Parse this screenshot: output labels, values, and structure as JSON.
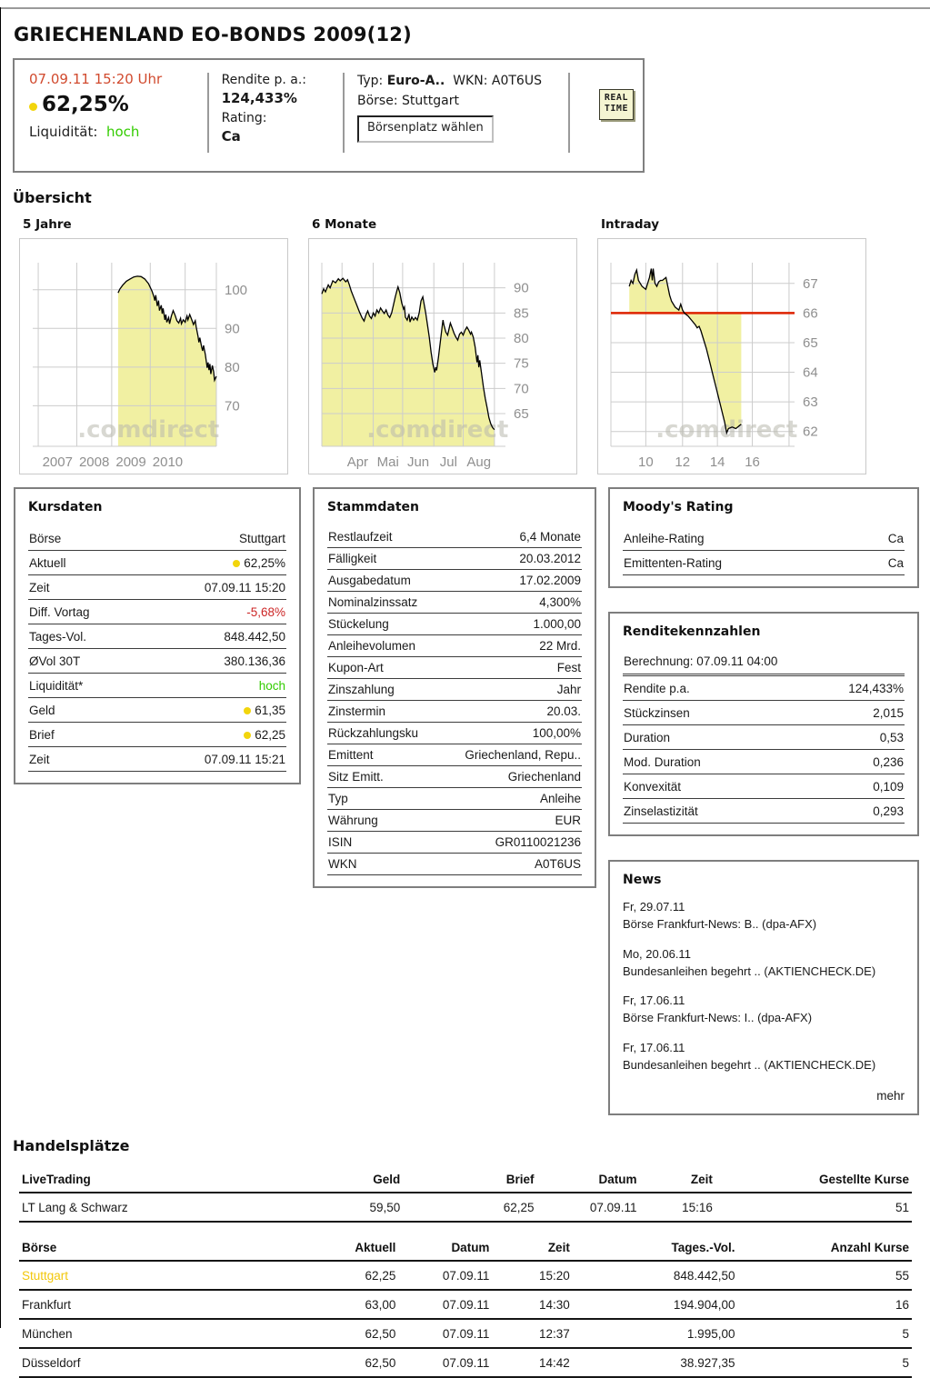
{
  "page": {
    "title": "GRIECHENLAND EO-BONDS 2009(12)"
  },
  "header": {
    "timestamp": "07.09.11  15:20 Uhr",
    "price": "62,25%",
    "liquidity_label": "Liquidität:",
    "liquidity_value": "hoch",
    "yield_label": "Rendite p. a.:",
    "yield_value": "124,433%",
    "rating_label": "Rating:",
    "rating_value": "Ca",
    "type_label": "Typ:",
    "type_value": "Euro-A..",
    "wkn_label": "WKN:",
    "wkn_value": "A0T6US",
    "exchange_label": "Börse:",
    "exchange_value": "Stuttgart",
    "select_button": "Börsenplatz wählen",
    "badge": [
      "REAL",
      "TIME"
    ]
  },
  "overview_heading": "Übersicht",
  "watermark": ".comdirect",
  "colors": {
    "accent_red": "#d14a2e",
    "negative_red": "#cc2626",
    "positive_green": "#33cc00",
    "quote_dot_yellow": "#f2d50c",
    "chart_fill": "#f1f0a2",
    "chart_refline_red": "#dd2200",
    "highlight_yellow": "#f2c70b"
  },
  "chart_data": [
    {
      "type": "area",
      "title": "5 Jahre",
      "ylabel": "",
      "xlabel": "",
      "ylim": [
        59.5,
        107
      ],
      "yticks": [
        70,
        80,
        90,
        100
      ],
      "grid_x": [
        0.03,
        0.24,
        0.43,
        0.64,
        0.83,
        1.0
      ],
      "xlabels": [
        {
          "t": "2007",
          "x": 0.135
        },
        {
          "t": "2008",
          "x": 0.335
        },
        {
          "t": "2009",
          "x": 0.535
        },
        {
          "t": "2010",
          "x": 0.735
        }
      ],
      "points": [
        [
          0.465,
          99.2
        ],
        [
          0.475,
          100.2
        ],
        [
          0.49,
          101.2
        ],
        [
          0.51,
          102.2
        ],
        [
          0.53,
          102.8
        ],
        [
          0.55,
          103.3
        ],
        [
          0.57,
          103.5
        ],
        [
          0.59,
          103.4
        ],
        [
          0.61,
          102.8
        ],
        [
          0.63,
          101.6
        ],
        [
          0.64,
          100.6
        ],
        [
          0.65,
          99.6
        ],
        [
          0.66,
          98.2
        ],
        [
          0.665,
          97.2
        ],
        [
          0.67,
          98.6
        ],
        [
          0.678,
          95.8
        ],
        [
          0.685,
          97.2
        ],
        [
          0.69,
          94.6
        ],
        [
          0.7,
          96.0
        ],
        [
          0.705,
          93.8
        ],
        [
          0.71,
          95.2
        ],
        [
          0.72,
          92.2
        ],
        [
          0.725,
          93.6
        ],
        [
          0.73,
          91.6
        ],
        [
          0.74,
          92.8
        ],
        [
          0.745,
          91.2
        ],
        [
          0.755,
          93.2
        ],
        [
          0.765,
          94.6
        ],
        [
          0.775,
          93.4
        ],
        [
          0.785,
          92.0
        ],
        [
          0.795,
          91.4
        ],
        [
          0.805,
          92.6
        ],
        [
          0.81,
          91.2
        ],
        [
          0.82,
          92.2
        ],
        [
          0.83,
          91.6
        ],
        [
          0.84,
          93.2
        ],
        [
          0.845,
          92.2
        ],
        [
          0.855,
          93.6
        ],
        [
          0.865,
          92.4
        ],
        [
          0.875,
          91.0
        ],
        [
          0.885,
          92.0
        ],
        [
          0.89,
          90.4
        ],
        [
          0.9,
          88.0
        ],
        [
          0.905,
          86.4
        ],
        [
          0.91,
          87.6
        ],
        [
          0.92,
          85.2
        ],
        [
          0.925,
          84.2
        ],
        [
          0.93,
          85.6
        ],
        [
          0.94,
          83.2
        ],
        [
          0.95,
          79.8
        ],
        [
          0.955,
          81.2
        ],
        [
          0.96,
          79.2
        ],
        [
          0.965,
          80.8
        ],
        [
          0.97,
          78.2
        ],
        [
          0.978,
          80.4
        ],
        [
          0.985,
          78.8
        ],
        [
          0.99,
          76.6
        ],
        [
          1.0,
          77.6
        ]
      ]
    },
    {
      "type": "area",
      "title": "6 Monate",
      "ylabel": "",
      "xlabel": "",
      "ylim": [
        58.5,
        95
      ],
      "yticks": [
        65,
        70,
        75,
        80,
        85,
        90
      ],
      "grid_x": [
        0,
        0.11,
        0.28,
        0.44,
        0.61,
        0.77,
        0.94
      ],
      "xlabels": [
        {
          "t": "Apr",
          "x": 0.195
        },
        {
          "t": "Mai",
          "x": 0.36
        },
        {
          "t": "Jun",
          "x": 0.525
        },
        {
          "t": "Jul",
          "x": 0.69
        },
        {
          "t": "Aug",
          "x": 0.855
        }
      ],
      "points": [
        [
          0,
          88.8
        ],
        [
          0.01,
          89.8
        ],
        [
          0.02,
          89.2
        ],
        [
          0.035,
          90.6
        ],
        [
          0.045,
          90.0
        ],
        [
          0.06,
          91.4
        ],
        [
          0.075,
          91.0
        ],
        [
          0.09,
          91.8
        ],
        [
          0.1,
          91.4
        ],
        [
          0.115,
          91.9
        ],
        [
          0.13,
          91.2
        ],
        [
          0.14,
          91.6
        ],
        [
          0.15,
          90.6
        ],
        [
          0.16,
          89.4
        ],
        [
          0.175,
          88.0
        ],
        [
          0.19,
          86.6
        ],
        [
          0.205,
          85.2
        ],
        [
          0.22,
          84.0
        ],
        [
          0.23,
          83.4
        ],
        [
          0.24,
          84.6
        ],
        [
          0.25,
          85.4
        ],
        [
          0.26,
          84.4
        ],
        [
          0.27,
          83.9
        ],
        [
          0.28,
          85.0
        ],
        [
          0.29,
          84.4
        ],
        [
          0.3,
          85.6
        ],
        [
          0.31,
          85.0
        ],
        [
          0.32,
          86.0
        ],
        [
          0.33,
          85.4
        ],
        [
          0.34,
          84.9
        ],
        [
          0.35,
          85.6
        ],
        [
          0.36,
          84.6
        ],
        [
          0.37,
          84.1
        ],
        [
          0.38,
          85.0
        ],
        [
          0.39,
          86.6
        ],
        [
          0.4,
          88.2
        ],
        [
          0.41,
          89.6
        ],
        [
          0.415,
          90.2
        ],
        [
          0.425,
          89.0
        ],
        [
          0.435,
          87.0
        ],
        [
          0.445,
          85.8
        ],
        [
          0.45,
          86.2
        ],
        [
          0.455,
          84.2
        ],
        [
          0.465,
          83.6
        ],
        [
          0.475,
          84.8
        ],
        [
          0.48,
          83.2
        ],
        [
          0.49,
          84.2
        ],
        [
          0.5,
          83.6
        ],
        [
          0.51,
          84.1
        ],
        [
          0.52,
          83.6
        ],
        [
          0.53,
          85.0
        ],
        [
          0.54,
          87.4
        ],
        [
          0.55,
          88.2
        ],
        [
          0.555,
          87.2
        ],
        [
          0.565,
          85.2
        ],
        [
          0.575,
          82.8
        ],
        [
          0.585,
          80.2
        ],
        [
          0.595,
          77.2
        ],
        [
          0.605,
          74.8
        ],
        [
          0.615,
          73.2
        ],
        [
          0.62,
          74.2
        ],
        [
          0.625,
          73.6
        ],
        [
          0.635,
          76.2
        ],
        [
          0.645,
          79.2
        ],
        [
          0.655,
          82.2
        ],
        [
          0.66,
          83.6
        ],
        [
          0.665,
          82.6
        ],
        [
          0.675,
          81.2
        ],
        [
          0.685,
          80.6
        ],
        [
          0.695,
          82.2
        ],
        [
          0.7,
          83.0
        ],
        [
          0.71,
          82.0
        ],
        [
          0.72,
          81.0
        ],
        [
          0.73,
          80.2
        ],
        [
          0.74,
          79.6
        ],
        [
          0.75,
          80.8
        ],
        [
          0.76,
          81.2
        ],
        [
          0.77,
          80.6
        ],
        [
          0.78,
          81.6
        ],
        [
          0.79,
          82.2
        ],
        [
          0.8,
          81.6
        ],
        [
          0.81,
          80.8
        ],
        [
          0.815,
          81.2
        ],
        [
          0.825,
          80.2
        ],
        [
          0.835,
          78.2
        ],
        [
          0.845,
          75.2
        ],
        [
          0.85,
          76.6
        ],
        [
          0.855,
          74.2
        ],
        [
          0.86,
          75.6
        ],
        [
          0.87,
          73.0
        ],
        [
          0.88,
          70.2
        ],
        [
          0.89,
          68.0
        ],
        [
          0.9,
          66.2
        ],
        [
          0.91,
          64.2
        ],
        [
          0.92,
          63.0
        ],
        [
          0.93,
          62.2
        ],
        [
          0.94,
          61.8
        ]
      ]
    },
    {
      "type": "area",
      "title": "Intraday",
      "ylabel": "",
      "xlabel": "",
      "ylim": [
        61.5,
        67.7
      ],
      "yticks": [
        62,
        63,
        64,
        65,
        66,
        67
      ],
      "refline": 66,
      "grid_x": [
        0,
        0.19,
        0.39,
        0.58,
        0.77,
        0.97
      ],
      "xlabels": [
        {
          "t": "10",
          "x": 0.19
        },
        {
          "t": "12",
          "x": 0.39
        },
        {
          "t": "14",
          "x": 0.58
        },
        {
          "t": "16",
          "x": 0.77
        }
      ],
      "points": [
        [
          0.1,
          66.9
        ],
        [
          0.11,
          67.1
        ],
        [
          0.12,
          67.0
        ],
        [
          0.13,
          67.3
        ],
        [
          0.14,
          67.45
        ],
        [
          0.15,
          67.1
        ],
        [
          0.16,
          67.0
        ],
        [
          0.17,
          66.9
        ],
        [
          0.18,
          66.85
        ],
        [
          0.19,
          66.8
        ],
        [
          0.2,
          67.0
        ],
        [
          0.21,
          67.2
        ],
        [
          0.22,
          67.5
        ],
        [
          0.225,
          67.1
        ],
        [
          0.23,
          67.5
        ],
        [
          0.24,
          67.0
        ],
        [
          0.25,
          66.9
        ],
        [
          0.26,
          67.05
        ],
        [
          0.27,
          67.1
        ],
        [
          0.28,
          67.1
        ],
        [
          0.29,
          67.15
        ],
        [
          0.3,
          67.2
        ],
        [
          0.31,
          66.9
        ],
        [
          0.32,
          66.6
        ],
        [
          0.33,
          66.4
        ],
        [
          0.34,
          66.3
        ],
        [
          0.35,
          66.2
        ],
        [
          0.36,
          66.15
        ],
        [
          0.37,
          66.1
        ],
        [
          0.38,
          66.3
        ],
        [
          0.39,
          66.1
        ],
        [
          0.4,
          66.0
        ],
        [
          0.42,
          65.9
        ],
        [
          0.44,
          65.75
        ],
        [
          0.46,
          65.6
        ],
        [
          0.47,
          65.5
        ],
        [
          0.48,
          65.55
        ],
        [
          0.49,
          65.4
        ],
        [
          0.5,
          65.2
        ],
        [
          0.52,
          64.8
        ],
        [
          0.54,
          64.3
        ],
        [
          0.56,
          63.8
        ],
        [
          0.58,
          63.3
        ],
        [
          0.6,
          62.8
        ],
        [
          0.62,
          62.3
        ],
        [
          0.63,
          61.95
        ],
        [
          0.64,
          62.1
        ],
        [
          0.66,
          62.15
        ],
        [
          0.68,
          62.1
        ],
        [
          0.7,
          62.2
        ],
        [
          0.71,
          62.25
        ]
      ]
    }
  ],
  "kursdaten": {
    "heading": "Kursdaten",
    "rows": [
      {
        "label": "Börse",
        "value": "Stuttgart"
      },
      {
        "label": "Aktuell",
        "value": "62,25%",
        "dot": true
      },
      {
        "label": "Zeit",
        "value": "07.09.11 15:20"
      },
      {
        "label": "Diff. Vortag",
        "value": "-5,68%",
        "cls": "red"
      },
      {
        "label": "Tages-Vol.",
        "value": "848.442,50"
      },
      {
        "label": "ØVol 30T",
        "value": "380.136,36"
      },
      {
        "label": "Liquidität*",
        "value": "hoch",
        "cls": "green"
      },
      {
        "label": "Geld",
        "value": "61,35",
        "dot": true
      },
      {
        "label": "Brief",
        "value": "62,25",
        "dot": true
      },
      {
        "label": "Zeit",
        "value": "07.09.11 15:21"
      }
    ]
  },
  "stammdaten": {
    "heading": "Stammdaten",
    "rows": [
      {
        "label": "Restlaufzeit",
        "value": "6,4 Monate"
      },
      {
        "label": "Fälligkeit",
        "value": "20.03.2012"
      },
      {
        "label": "Ausgabedatum",
        "value": "17.02.2009"
      },
      {
        "label": "Nominalzinssatz",
        "value": "4,300%"
      },
      {
        "label": "Stückelung",
        "value": "1.000,00"
      },
      {
        "label": "Anleihevolumen",
        "value": "22 Mrd."
      },
      {
        "label": "Kupon-Art",
        "value": "Fest"
      },
      {
        "label": "Zinszahlung",
        "value": "Jahr"
      },
      {
        "label": "Zinstermin",
        "value": "20.03."
      },
      {
        "label": "Rückzahlungsku",
        "value": "100,00%"
      },
      {
        "label": "Emittent",
        "value": "Griechenland, Repu.."
      },
      {
        "label": "Sitz Emitt.",
        "value": "Griechenland"
      },
      {
        "label": "Typ",
        "value": "Anleihe"
      },
      {
        "label": "Währung",
        "value": "EUR"
      },
      {
        "label": "ISIN",
        "value": "GR0110021236"
      },
      {
        "label": "WKN",
        "value": "A0T6US"
      }
    ]
  },
  "moodys": {
    "heading": "Moody's Rating",
    "rows": [
      {
        "label": "Anleihe-Rating",
        "value": "Ca"
      },
      {
        "label": "Emittenten-Rating",
        "value": "Ca"
      }
    ]
  },
  "rendite": {
    "heading": "Renditekennzahlen",
    "berechnung": "Berechnung: 07.09.11  04:00",
    "rows": [
      {
        "label": "Rendite p.a.",
        "value": "124,433%"
      },
      {
        "label": "Stückzinsen",
        "value": "2,015"
      },
      {
        "label": "Duration",
        "value": "0,53"
      },
      {
        "label": "Mod. Duration",
        "value": "0,236"
      },
      {
        "label": "Konvexität",
        "value": "0,109"
      },
      {
        "label": "Zinselastizität",
        "value": "0,293"
      }
    ]
  },
  "news": {
    "heading": "News",
    "items": [
      {
        "date": "Fr, 29.07.11",
        "headline": "Börse Frankfurt-News: B.. (dpa-AFX)"
      },
      {
        "date": "Mo, 20.06.11",
        "headline": "Bundesanleihen begehrt .. (AKTIENCHECK.DE)"
      },
      {
        "date": "Fr, 17.06.11",
        "headline": "Börse Frankfurt-News: I.. (dpa-AFX)"
      },
      {
        "date": "Fr, 17.06.11",
        "headline": "Bundesanleihen begehrt .. (AKTIENCHECK.DE)"
      }
    ],
    "more": "mehr"
  },
  "handelsplaetze": {
    "heading": "Handelsplätze",
    "livetrading": {
      "columns": [
        "LiveTrading",
        "Geld",
        "Brief",
        "Datum",
        "Zeit",
        "Gestellte Kurse"
      ],
      "rows": [
        [
          "LT Lang & Schwarz",
          "59,50",
          "62,25",
          "07.09.11",
          "15:16",
          "51"
        ]
      ]
    },
    "boersen": {
      "columns": [
        "Börse",
        "Aktuell",
        "Datum",
        "Zeit",
        "Tages.-Vol.",
        "Anzahl Kurse"
      ],
      "highlight_row": 0,
      "rows": [
        [
          "Stuttgart",
          "62,25",
          "07.09.11",
          "15:20",
          "848.442,50",
          "55"
        ],
        [
          "Frankfurt",
          "63,00",
          "07.09.11",
          "14:30",
          "194.904,00",
          "16"
        ],
        [
          "München",
          "62,50",
          "07.09.11",
          "12:37",
          "1.995,00",
          "5"
        ],
        [
          "Düsseldorf",
          "62,50",
          "07.09.11",
          "14:42",
          "38.927,35",
          "5"
        ]
      ]
    }
  }
}
